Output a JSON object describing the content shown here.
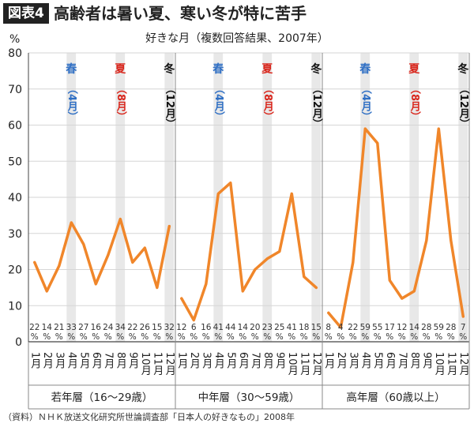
{
  "header": {
    "badge": "図表4",
    "title": "高齢者は暑い夏、寒い冬が特に苦手"
  },
  "source": "（資料）ＮＨＫ放送文化研究所世論調査部「日本人の好きなもの」2008年",
  "colors": {
    "line": "#f0862a",
    "spring": "#2f6fc4",
    "summer": "#d9261c",
    "winter": "#111111",
    "highlight": "#e8e8e8"
  },
  "chart_data": {
    "type": "line",
    "title": "好きな月（複数回答結果、2007年）",
    "ylabel": "%",
    "ylim": [
      0,
      80
    ],
    "yticks": [
      0,
      10,
      20,
      30,
      40,
      50,
      60,
      70,
      80
    ],
    "grid": true,
    "value_unit": "%",
    "months": [
      "1月",
      "2月",
      "3月",
      "4月",
      "5月",
      "6月",
      "7月",
      "8月",
      "9月",
      "10月",
      "11月",
      "12月"
    ],
    "highlighted_months": [
      4,
      8,
      12
    ],
    "season_labels": [
      {
        "month": 4,
        "season": "春",
        "paren": "（4月）",
        "color_key": "spring"
      },
      {
        "month": 8,
        "season": "夏",
        "paren": "（8月）",
        "color_key": "summer"
      },
      {
        "month": 12,
        "season": "冬",
        "paren": "（12月）",
        "color_key": "winter"
      }
    ],
    "series": [
      {
        "name": "若年層（16〜29歳）",
        "values": [
          22,
          14,
          21,
          33,
          27,
          16,
          24,
          34,
          22,
          26,
          15,
          32
        ]
      },
      {
        "name": "中年層（30〜59歳）",
        "values": [
          12,
          6,
          16,
          41,
          44,
          14,
          20,
          23,
          25,
          41,
          18,
          15
        ]
      },
      {
        "name": "高年層（60歳以上）",
        "values": [
          8,
          4,
          22,
          59,
          55,
          17,
          12,
          14,
          28,
          59,
          28,
          7
        ]
      }
    ]
  }
}
